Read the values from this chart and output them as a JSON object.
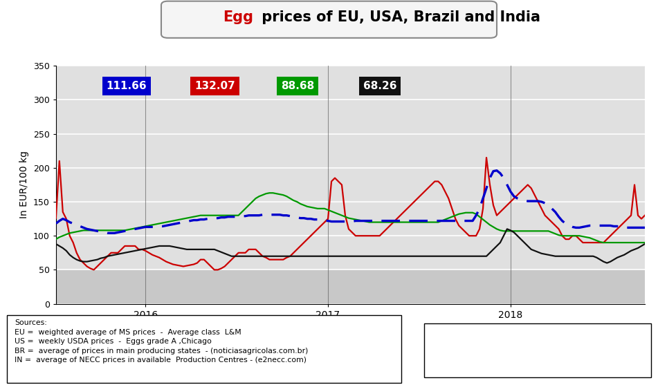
{
  "title_egg": "Egg",
  "title_rest": " prices of EU, USA, Brazil and India",
  "ylabel": "In EUR/100 kg",
  "ylim": [
    0,
    350
  ],
  "yticks": [
    0,
    50,
    100,
    150,
    200,
    250,
    300,
    350
  ],
  "avg_labels": [
    "111.66",
    "132.07",
    "88.68",
    "68.26"
  ],
  "avg_colors": [
    "#0000cc",
    "#cc0000",
    "#009900",
    "#111111"
  ],
  "sources_text": "Sources:\nEU =  weighted average of MS prices  -  Average class  L&M\nUS =  weekly USDA prices  -  Eggs grade A ,Chicago\nBR =  average of prices in main producing states  - (noticiasagricolas.com.br)\nIN =  average of NECC prices in available  Production Centres - (e2necc.com)",
  "EU": [
    118,
    122,
    125,
    123,
    120,
    118,
    116,
    114,
    112,
    110,
    109,
    108,
    107,
    106,
    105,
    104,
    104,
    104,
    105,
    106,
    107,
    108,
    109,
    110,
    111,
    112,
    113,
    113,
    113,
    113,
    114,
    114,
    115,
    116,
    117,
    118,
    119,
    120,
    121,
    122,
    123,
    123,
    124,
    124,
    125,
    125,
    126,
    126,
    127,
    127,
    128,
    128,
    128,
    129,
    129,
    129,
    130,
    130,
    130,
    130,
    131,
    131,
    131,
    131,
    131,
    131,
    130,
    130,
    129,
    128,
    127,
    126,
    126,
    125,
    125,
    124,
    124,
    123,
    122,
    122,
    121,
    121,
    121,
    121,
    121,
    121,
    121,
    122,
    122,
    122,
    122,
    122,
    122,
    122,
    122,
    122,
    122,
    122,
    122,
    122,
    122,
    122,
    122,
    122,
    122,
    122,
    122,
    122,
    122,
    122,
    122,
    122,
    122,
    122,
    122,
    122,
    122,
    122,
    122,
    122,
    122,
    122,
    130,
    140,
    155,
    170,
    185,
    195,
    196,
    192,
    185,
    175,
    165,
    158,
    155,
    153,
    152,
    151,
    151,
    151,
    151,
    150,
    148,
    145,
    140,
    135,
    128,
    122,
    118,
    115,
    113,
    112,
    112,
    113,
    114,
    115,
    115,
    115,
    115,
    115,
    115,
    115,
    114,
    114,
    113,
    112,
    112,
    112,
    112,
    112,
    112,
    112
  ],
  "US": [
    126,
    210,
    135,
    125,
    100,
    90,
    75,
    65,
    60,
    55,
    52,
    50,
    55,
    60,
    65,
    70,
    75,
    75,
    75,
    80,
    85,
    85,
    85,
    85,
    80,
    80,
    78,
    75,
    72,
    70,
    68,
    65,
    62,
    60,
    58,
    57,
    56,
    55,
    56,
    57,
    58,
    60,
    65,
    65,
    60,
    55,
    50,
    50,
    52,
    55,
    60,
    65,
    70,
    75,
    75,
    75,
    80,
    80,
    80,
    75,
    70,
    68,
    65,
    65,
    65,
    65,
    65,
    68,
    70,
    75,
    80,
    85,
    90,
    95,
    100,
    105,
    110,
    115,
    120,
    125,
    180,
    185,
    180,
    175,
    130,
    110,
    105,
    100,
    100,
    100,
    100,
    100,
    100,
    100,
    100,
    105,
    110,
    115,
    120,
    125,
    130,
    135,
    140,
    145,
    150,
    155,
    160,
    165,
    170,
    175,
    180,
    180,
    175,
    165,
    155,
    140,
    125,
    115,
    110,
    105,
    100,
    100,
    100,
    110,
    140,
    215,
    175,
    145,
    130,
    135,
    140,
    145,
    150,
    155,
    160,
    165,
    170,
    175,
    170,
    160,
    150,
    140,
    130,
    125,
    120,
    115,
    110,
    100,
    95,
    95,
    100,
    100,
    95,
    90,
    90,
    90,
    90,
    90,
    90,
    90,
    95,
    100,
    105,
    110,
    115,
    120,
    125,
    130,
    175,
    130,
    125,
    130
  ],
  "BR": [
    95,
    98,
    100,
    102,
    104,
    105,
    106,
    107,
    108,
    108,
    108,
    108,
    108,
    108,
    108,
    108,
    108,
    108,
    108,
    108,
    108,
    109,
    110,
    111,
    112,
    113,
    114,
    115,
    116,
    117,
    118,
    119,
    120,
    121,
    122,
    123,
    124,
    125,
    126,
    127,
    128,
    129,
    130,
    130,
    130,
    130,
    130,
    130,
    130,
    130,
    130,
    130,
    130,
    130,
    135,
    140,
    145,
    150,
    155,
    158,
    160,
    162,
    163,
    163,
    162,
    161,
    160,
    158,
    155,
    152,
    150,
    147,
    145,
    143,
    142,
    141,
    140,
    140,
    140,
    138,
    136,
    134,
    132,
    130,
    128,
    126,
    125,
    124,
    123,
    122,
    121,
    120,
    120,
    120,
    120,
    120,
    120,
    120,
    120,
    120,
    120,
    120,
    120,
    120,
    120,
    120,
    120,
    120,
    120,
    120,
    120,
    120,
    122,
    124,
    126,
    128,
    130,
    132,
    133,
    134,
    134,
    134,
    132,
    128,
    124,
    120,
    116,
    113,
    110,
    108,
    107,
    107,
    107,
    107,
    107,
    107,
    107,
    107,
    107,
    107,
    107,
    107,
    107,
    107,
    105,
    103,
    101,
    100,
    100,
    100,
    100,
    100,
    100,
    99,
    98,
    97,
    95,
    93,
    91,
    90,
    90,
    90,
    90,
    90,
    90,
    90,
    90,
    90,
    90,
    90,
    90,
    90
  ],
  "IN": [
    88,
    85,
    82,
    78,
    72,
    68,
    65,
    63,
    62,
    62,
    63,
    64,
    65,
    67,
    68,
    70,
    71,
    72,
    73,
    74,
    75,
    76,
    77,
    78,
    79,
    80,
    81,
    82,
    83,
    84,
    85,
    85,
    85,
    85,
    84,
    83,
    82,
    81,
    80,
    80,
    80,
    80,
    80,
    80,
    80,
    80,
    80,
    78,
    76,
    74,
    72,
    70,
    70,
    70,
    70,
    70,
    70,
    70,
    70,
    70,
    70,
    70,
    70,
    70,
    70,
    70,
    70,
    70,
    70,
    70,
    70,
    70,
    70,
    70,
    70,
    70,
    70,
    70,
    70,
    70,
    70,
    70,
    70,
    70,
    70,
    70,
    70,
    70,
    70,
    70,
    70,
    70,
    70,
    70,
    70,
    70,
    70,
    70,
    70,
    70,
    70,
    70,
    70,
    70,
    70,
    70,
    70,
    70,
    70,
    70,
    70,
    70,
    70,
    70,
    70,
    70,
    70,
    70,
    70,
    70,
    70,
    70,
    70,
    70,
    70,
    70,
    75,
    80,
    85,
    90,
    100,
    110,
    108,
    105,
    100,
    95,
    90,
    85,
    80,
    78,
    76,
    74,
    73,
    72,
    71,
    70,
    70,
    70,
    70,
    70,
    70,
    70,
    70,
    70,
    70,
    70,
    70,
    68,
    65,
    62,
    60,
    62,
    65,
    68,
    70,
    72,
    75,
    78,
    80,
    82,
    85,
    88
  ],
  "x_ticks_pos": [
    26,
    79,
    132
  ],
  "x_tick_labels": [
    "2016",
    "2017",
    "2018"
  ],
  "n_points": 172,
  "eu_color": "#0000cc",
  "us_color": "#cc0000",
  "br_color": "#009900",
  "in_color": "#111111",
  "fig_width": 9.51,
  "fig_height": 5.6,
  "fig_dpi": 100
}
